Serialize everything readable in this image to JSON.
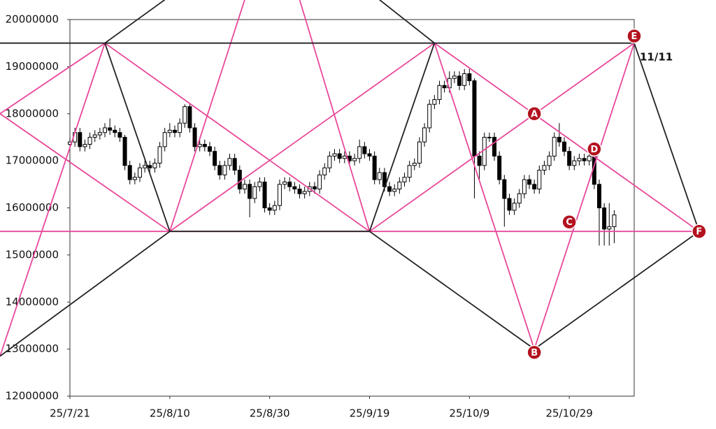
{
  "chart_data": {
    "type": "candlestick",
    "xlim": [
      "25/7/21",
      "25/11/11"
    ],
    "xticks": [
      "25/7/21",
      "25/8/10",
      "25/8/30",
      "25/9/19",
      "25/10/9",
      "25/10/29"
    ],
    "ylim": [
      12000000,
      20000000
    ],
    "yticks": [
      12000000,
      13000000,
      14000000,
      15000000,
      16000000,
      17000000,
      18000000,
      19000000,
      20000000
    ],
    "x": [
      "25/7/21",
      "25/7/22",
      "25/7/23",
      "25/7/24",
      "25/7/25",
      "25/7/26",
      "25/7/27",
      "25/7/28",
      "25/7/29",
      "25/7/30",
      "25/7/31",
      "25/8/1",
      "25/8/2",
      "25/8/3",
      "25/8/4",
      "25/8/5",
      "25/8/6",
      "25/8/7",
      "25/8/8",
      "25/8/9",
      "25/8/10",
      "25/8/11",
      "25/8/12",
      "25/8/13",
      "25/8/14",
      "25/8/15",
      "25/8/16",
      "25/8/17",
      "25/8/18",
      "25/8/19",
      "25/8/20",
      "25/8/21",
      "25/8/22",
      "25/8/23",
      "25/8/24",
      "25/8/25",
      "25/8/26",
      "25/8/27",
      "25/8/28",
      "25/8/29",
      "25/8/30",
      "25/8/31",
      "25/9/1",
      "25/9/2",
      "25/9/3",
      "25/9/4",
      "25/9/5",
      "25/9/6",
      "25/9/7",
      "25/9/8",
      "25/9/9",
      "25/9/10",
      "25/9/11",
      "25/9/12",
      "25/9/13",
      "25/9/14",
      "25/9/15",
      "25/9/16",
      "25/9/17",
      "25/9/18",
      "25/9/19",
      "25/9/20",
      "25/9/21",
      "25/9/22",
      "25/9/23",
      "25/9/24",
      "25/9/25",
      "25/9/26",
      "25/9/27",
      "25/9/28",
      "25/9/29",
      "25/9/30",
      "25/10/1",
      "25/10/2",
      "25/10/3",
      "25/10/4",
      "25/10/5",
      "25/10/6",
      "25/10/7",
      "25/10/8",
      "25/10/9",
      "25/10/10",
      "25/10/11",
      "25/10/12",
      "25/10/13",
      "25/10/14",
      "25/10/15",
      "25/10/16",
      "25/10/17",
      "25/10/18",
      "25/10/19",
      "25/10/20",
      "25/10/21",
      "25/10/22",
      "25/10/23",
      "25/10/24",
      "25/10/25",
      "25/10/26",
      "25/10/27",
      "25/10/28",
      "25/10/29",
      "25/10/30",
      "25/10/31",
      "25/11/1",
      "25/11/2",
      "25/11/3",
      "25/11/4",
      "25/11/5",
      "25/11/6",
      "25/11/7"
    ],
    "open": [
      17350000,
      17400000,
      17600000,
      17300000,
      17350000,
      17500000,
      17550000,
      17600000,
      17700000,
      17650000,
      17600000,
      17500000,
      16900000,
      16600000,
      16650000,
      16850000,
      16900000,
      16850000,
      16950000,
      17300000,
      17600000,
      17650000,
      17600000,
      17800000,
      18150000,
      17700000,
      17300000,
      17350000,
      17300000,
      17200000,
      16900000,
      16700000,
      16900000,
      17050000,
      16800000,
      16400000,
      16500000,
      16200000,
      16450000,
      16550000,
      16000000,
      15950000,
      16050000,
      16500000,
      16550000,
      16450000,
      16400000,
      16300000,
      16350000,
      16450000,
      16400000,
      16700000,
      16850000,
      17100000,
      17150000,
      17050000,
      17100000,
      17000000,
      17050000,
      17300000,
      17150000,
      17100000,
      16600000,
      16750000,
      16450000,
      16350000,
      16400000,
      16550000,
      16650000,
      16900000,
      16950000,
      17400000,
      17700000,
      18200000,
      18300000,
      18600000,
      18550000,
      18750000,
      18800000,
      18600000,
      18850000,
      18700000,
      17100000,
      16900000,
      17500000,
      17500000,
      17100000,
      16600000,
      16200000,
      15950000,
      16100000,
      16300000,
      16600000,
      16500000,
      16400000,
      16800000,
      16900000,
      17100000,
      17500000,
      17400000,
      17200000,
      16900000,
      17000000,
      17050000,
      17000000,
      17100000,
      16500000,
      16000000,
      15550000,
      15600000
    ],
    "high": [
      17500000,
      17700000,
      17700000,
      17450000,
      17600000,
      17650000,
      17700000,
      17800000,
      17900000,
      17750000,
      17700000,
      17550000,
      17000000,
      16750000,
      16950000,
      17000000,
      17000000,
      17050000,
      17400000,
      17700000,
      17800000,
      17750000,
      17900000,
      18200000,
      18200000,
      17800000,
      17450000,
      17450000,
      17400000,
      17300000,
      17000000,
      17000000,
      17150000,
      17150000,
      16900000,
      16600000,
      16600000,
      16550000,
      16650000,
      16650000,
      16100000,
      16150000,
      16600000,
      16650000,
      16650000,
      16550000,
      16500000,
      16450000,
      16550000,
      16550000,
      16800000,
      16950000,
      17200000,
      17250000,
      17250000,
      17200000,
      17200000,
      17150000,
      17450000,
      17400000,
      17250000,
      17200000,
      16850000,
      16850000,
      16550000,
      16500000,
      16650000,
      16750000,
      17000000,
      17050000,
      17500000,
      17800000,
      18300000,
      18400000,
      18700000,
      18700000,
      18900000,
      18900000,
      18900000,
      18950000,
      18950000,
      18750000,
      17200000,
      17600000,
      17600000,
      17600000,
      17200000,
      16700000,
      16300000,
      16200000,
      16400000,
      16700000,
      16700000,
      16600000,
      16900000,
      17000000,
      17200000,
      17600000,
      17800000,
      17500000,
      17300000,
      17100000,
      17150000,
      17150000,
      17200000,
      17200000,
      16600000,
      16100000,
      16100000,
      15950000
    ],
    "low": [
      17250000,
      17300000,
      17200000,
      17200000,
      17250000,
      17400000,
      17450000,
      17500000,
      17550000,
      17500000,
      17400000,
      16800000,
      16500000,
      16500000,
      16550000,
      16750000,
      16750000,
      16750000,
      16850000,
      17200000,
      17500000,
      17500000,
      17500000,
      17700000,
      17600000,
      17200000,
      17200000,
      17200000,
      17100000,
      16800000,
      16600000,
      16600000,
      16800000,
      16700000,
      16300000,
      16300000,
      15800000,
      16100000,
      16350000,
      15900000,
      15850000,
      15850000,
      15950000,
      16400000,
      16350000,
      16300000,
      16200000,
      16200000,
      16250000,
      16300000,
      16300000,
      16600000,
      16750000,
      17000000,
      16950000,
      16950000,
      16900000,
      16900000,
      16950000,
      17050000,
      17000000,
      16500000,
      16500000,
      16350000,
      16250000,
      16250000,
      16300000,
      16450000,
      16550000,
      16800000,
      16850000,
      17300000,
      17600000,
      18100000,
      18200000,
      18450000,
      18450000,
      18650000,
      18500000,
      18500000,
      18600000,
      16200000,
      16600000,
      16800000,
      17400000,
      17000000,
      16500000,
      15600000,
      15850000,
      15850000,
      16000000,
      16200000,
      16400000,
      16300000,
      16300000,
      16700000,
      16800000,
      17000000,
      17300000,
      17100000,
      16800000,
      16800000,
      16900000,
      16900000,
      16900000,
      16400000,
      15200000,
      15200000,
      15200000,
      15250000
    ],
    "close": [
      17400000,
      17600000,
      17300000,
      17350000,
      17500000,
      17550000,
      17600000,
      17700000,
      17650000,
      17600000,
      17500000,
      16900000,
      16600000,
      16650000,
      16850000,
      16900000,
      16850000,
      16950000,
      17300000,
      17600000,
      17650000,
      17600000,
      17800000,
      18150000,
      17700000,
      17300000,
      17350000,
      17300000,
      17200000,
      16900000,
      16700000,
      16900000,
      17050000,
      16800000,
      16400000,
      16500000,
      16200000,
      16450000,
      16550000,
      16000000,
      15950000,
      16050000,
      16500000,
      16550000,
      16450000,
      16400000,
      16300000,
      16350000,
      16450000,
      16400000,
      16700000,
      16850000,
      17100000,
      17150000,
      17050000,
      17100000,
      17000000,
      17050000,
      17300000,
      17150000,
      17100000,
      16600000,
      16750000,
      16450000,
      16350000,
      16400000,
      16550000,
      16650000,
      16900000,
      16950000,
      17400000,
      17700000,
      18200000,
      18300000,
      18600000,
      18550000,
      18750000,
      18800000,
      18600000,
      18850000,
      18700000,
      17100000,
      16900000,
      17500000,
      17500000,
      17100000,
      16600000,
      16200000,
      15950000,
      16100000,
      16300000,
      16600000,
      16500000,
      16400000,
      16800000,
      16900000,
      17100000,
      17500000,
      17400000,
      17200000,
      16900000,
      17000000,
      17050000,
      17000000,
      17100000,
      16500000,
      16000000,
      15550000,
      15600000,
      15850000
    ],
    "up_color": "#ffffff",
    "down_color": "#000000",
    "lines": [
      {
        "color": "#e8489a",
        "points": [
          [
            "25/7/7",
            18000000
          ],
          [
            "25/7/28",
            19500000
          ]
        ]
      },
      {
        "color": "#e8489a",
        "points": [
          [
            "25/7/7",
            18000000
          ],
          [
            "25/8/10",
            15500000
          ],
          [
            "25/10/2",
            19500000
          ],
          [
            "25/11/24",
            15500000
          ]
        ]
      },
      {
        "color": "#e8489a",
        "points": [
          [
            "25/7/7",
            12850000
          ],
          [
            "25/7/28",
            19500000
          ],
          [
            "25/9/19",
            15500000
          ],
          [
            "25/11/11",
            19500000
          ],
          [
            "25/10/22",
            13000000
          ],
          [
            "25/10/2",
            19500000
          ]
        ]
      },
      {
        "color": "#e8489a",
        "points": [
          [
            "25/8/10",
            15500000
          ],
          [
            "25/8/25",
            20420000
          ]
        ]
      },
      {
        "color": "#e8489a",
        "points": [
          [
            "25/9/19",
            15500000
          ],
          [
            "25/9/5",
            20420000
          ]
        ]
      },
      {
        "color": "#e8489a",
        "points": [
          [
            "25/7/7",
            15500000
          ],
          [
            "25/11/24",
            15500000
          ]
        ]
      },
      {
        "color": "#222222",
        "points": [
          [
            "25/7/7",
            19500000
          ],
          [
            "25/11/11",
            19500000
          ]
        ]
      },
      {
        "color": "#222222",
        "points": [
          [
            "25/8/10",
            15500000
          ],
          [
            "25/9/19",
            15500000
          ]
        ]
      },
      {
        "color": "#222222",
        "points": [
          [
            "25/8/9",
            20420000
          ],
          [
            "25/7/28",
            19500000
          ],
          [
            "25/8/10",
            15500000
          ],
          [
            "25/7/7",
            12850000
          ]
        ]
      },
      {
        "color": "#222222",
        "points": [
          [
            "25/9/21",
            20420000
          ],
          [
            "25/10/2",
            19500000
          ],
          [
            "25/9/19",
            15500000
          ],
          [
            "25/10/22",
            13000000
          ],
          [
            "25/11/24",
            15500000
          ],
          [
            "25/11/11",
            19500000
          ]
        ]
      }
    ],
    "markers": [
      {
        "text": "A",
        "x": "25/10/22",
        "y": 18000000
      },
      {
        "text": "B",
        "x": "25/10/22",
        "y": 12930000
      },
      {
        "text": "C",
        "x": "25/10/29",
        "y": 15700000
      },
      {
        "text": "D",
        "x": "25/11/3",
        "y": 17250000
      },
      {
        "text": "E",
        "x": "25/11/11",
        "y": 19650000
      },
      {
        "text": "F",
        "x": "25/11/24",
        "y": 15500000
      }
    ],
    "marker_color": "#b3121f",
    "annotation": {
      "text": "11/11",
      "x": "25/11/11",
      "y": 19200000
    }
  }
}
